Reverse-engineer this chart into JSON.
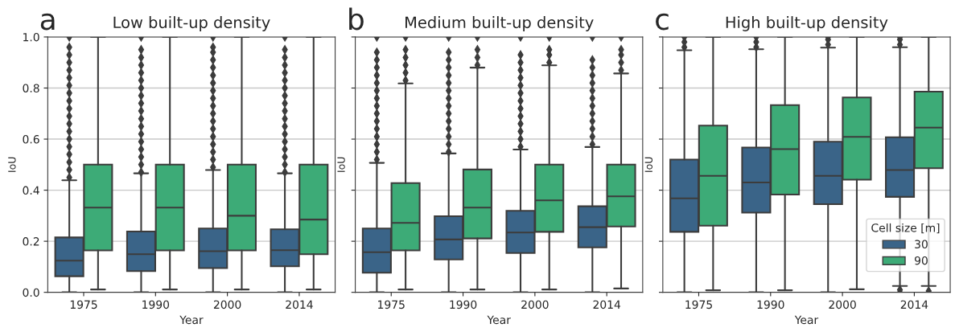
{
  "chart_data": [
    {
      "type": "box",
      "title": "Low built-up density",
      "annotations": [
        "a"
      ],
      "xlabel": "Year",
      "ylabel": "IoU",
      "categories": [
        "1975",
        "1990",
        "2000",
        "2014"
      ],
      "ylim": [
        0,
        1
      ],
      "yticks": [
        {
          "value": 0,
          "label": "0.0"
        },
        0.2,
        0.4,
        0.6,
        0.8,
        {
          "value": 1,
          "label": "1.0"
        }
      ],
      "grid": "y",
      "legend": false,
      "marker": "diamond",
      "series": [
        {
          "color": "#3a6488",
          "boxes": [
            {
              "low": 0.0,
              "q1": 0.063,
              "median": 0.124,
              "q3": 0.215,
              "high": 0.439,
              "outliers": [
                0.45,
                0.48,
                0.51,
                0.54,
                0.57,
                0.6,
                0.63,
                0.66,
                0.69,
                0.72,
                0.75,
                0.78,
                0.81,
                0.84,
                0.87,
                0.9,
                0.93,
                0.96,
                1.0
              ]
            },
            {
              "low": 0.0,
              "q1": 0.083,
              "median": 0.149,
              "q3": 0.238,
              "high": 0.466,
              "outliers": [
                0.47,
                0.5,
                0.53,
                0.56,
                0.59,
                0.62,
                0.65,
                0.68,
                0.71,
                0.74,
                0.77,
                0.8,
                0.83,
                0.86,
                0.89,
                0.92,
                0.95,
                1.0
              ]
            },
            {
              "low": 0.0,
              "q1": 0.095,
              "median": 0.161,
              "q3": 0.25,
              "high": 0.479,
              "outliers": [
                0.49,
                0.52,
                0.55,
                0.58,
                0.61,
                0.64,
                0.67,
                0.7,
                0.73,
                0.76,
                0.79,
                0.82,
                0.85,
                0.88,
                0.91,
                0.94,
                0.96,
                1.0
              ]
            },
            {
              "low": 0.0,
              "q1": 0.102,
              "median": 0.165,
              "q3": 0.247,
              "high": 0.466,
              "outliers": [
                0.47,
                0.5,
                0.53,
                0.56,
                0.59,
                0.62,
                0.65,
                0.68,
                0.71,
                0.74,
                0.77,
                0.8,
                0.83,
                0.86,
                0.89,
                0.92,
                0.95,
                1.0
              ]
            }
          ]
        },
        {
          "color": "#3dab77",
          "boxes": [
            {
              "low": 0.011,
              "q1": 0.164,
              "median": 0.332,
              "q3": 0.5,
              "high": 1.0
            },
            {
              "low": 0.011,
              "q1": 0.164,
              "median": 0.332,
              "q3": 0.5,
              "high": 1.0
            },
            {
              "low": 0.011,
              "q1": 0.164,
              "median": 0.3,
              "q3": 0.5,
              "high": 1.0
            },
            {
              "low": 0.011,
              "q1": 0.149,
              "median": 0.285,
              "q3": 0.5,
              "high": 1.0
            }
          ]
        }
      ]
    },
    {
      "type": "box",
      "title": "Medium built-up density",
      "annotations": [
        "b"
      ],
      "xlabel": "Year",
      "ylabel": "IoU",
      "categories": [
        "1975",
        "1990",
        "2000",
        "2014"
      ],
      "ylim": [
        0,
        1
      ],
      "yticks": [
        0.0,
        0.2,
        0.4,
        0.6,
        0.8,
        1.0
      ],
      "grid": "y",
      "legend": false,
      "tick_labels": "x",
      "marker": "diamond",
      "series": [
        {
          "color": "#3a6488",
          "boxes": [
            {
              "low": 0.0,
              "q1": 0.077,
              "median": 0.157,
              "q3": 0.25,
              "high": 0.507,
              "outliers": [
                0.52,
                0.55,
                0.58,
                0.61,
                0.64,
                0.67,
                0.7,
                0.73,
                0.76,
                0.79,
                0.82,
                0.85,
                0.88,
                0.91,
                0.94,
                1.0
              ]
            },
            {
              "low": 0.0,
              "q1": 0.129,
              "median": 0.207,
              "q3": 0.298,
              "high": 0.544,
              "outliers": [
                0.55,
                0.58,
                0.61,
                0.64,
                0.67,
                0.7,
                0.73,
                0.76,
                0.79,
                0.82,
                0.85,
                0.88,
                0.91,
                0.94,
                1.0
              ]
            },
            {
              "low": 0.0,
              "q1": 0.154,
              "median": 0.234,
              "q3": 0.319,
              "high": 0.559,
              "outliers": [
                0.57,
                0.6,
                0.63,
                0.66,
                0.69,
                0.72,
                0.75,
                0.78,
                0.81,
                0.84,
                0.87,
                0.9,
                0.93,
                1.0
              ]
            },
            {
              "low": 0.0,
              "q1": 0.176,
              "median": 0.255,
              "q3": 0.337,
              "high": 0.569,
              "outliers": [
                0.58,
                0.61,
                0.64,
                0.67,
                0.7,
                0.73,
                0.76,
                0.79,
                0.82,
                0.85,
                0.88,
                0.91,
                1.0
              ]
            }
          ]
        },
        {
          "color": "#3dab77",
          "boxes": [
            {
              "low": 0.011,
              "q1": 0.164,
              "median": 0.272,
              "q3": 0.428,
              "high": 0.818,
              "outliers": [
                0.83,
                0.86,
                0.89,
                0.92,
                0.95,
                1.0
              ]
            },
            {
              "low": 0.011,
              "q1": 0.211,
              "median": 0.332,
              "q3": 0.481,
              "high": 0.88,
              "outliers": [
                0.89,
                0.92,
                0.95,
                1.0
              ]
            },
            {
              "low": 0.011,
              "q1": 0.237,
              "median": 0.36,
              "q3": 0.5,
              "high": 0.889,
              "outliers": [
                0.9,
                0.93,
                0.95,
                1.0
              ]
            },
            {
              "low": 0.015,
              "q1": 0.258,
              "median": 0.376,
              "q3": 0.5,
              "high": 0.857,
              "outliers": [
                0.87,
                0.9,
                0.93,
                0.95,
                1.0
              ]
            }
          ]
        }
      ]
    },
    {
      "type": "box",
      "title": "High built-up density",
      "annotations": [
        "c"
      ],
      "xlabel": "Year",
      "ylabel": "IoU",
      "categories": [
        "1975",
        "1990",
        "2000",
        "2014"
      ],
      "ylim": [
        0,
        1
      ],
      "yticks": [
        0.0,
        0.2,
        0.4,
        0.6,
        0.8,
        1.0
      ],
      "grid": "y",
      "legend": "bottom right",
      "legend_title": "Cell size [m]",
      "tick_labels": "x",
      "marker": "diamond",
      "series": [
        {
          "name": "30",
          "color": "#3a6488",
          "boxes": [
            {
              "low": 0.0,
              "q1": 0.237,
              "median": 0.368,
              "q3": 0.52,
              "high": 0.948,
              "outliers": [
                0.96,
                0.98,
                1.0
              ]
            },
            {
              "low": 0.0,
              "q1": 0.312,
              "median": 0.43,
              "q3": 0.567,
              "high": 0.952,
              "outliers": [
                0.96,
                0.98,
                1.0
              ]
            },
            {
              "low": 0.0,
              "q1": 0.345,
              "median": 0.456,
              "q3": 0.59,
              "high": 0.958,
              "outliers": [
                0.97,
                0.99,
                1.0
              ]
            },
            {
              "low": 0.025,
              "q1": 0.374,
              "median": 0.479,
              "q3": 0.607,
              "high": 0.96,
              "outliers": [
                0.0,
                0.01,
                0.97,
                0.99,
                1.0
              ]
            }
          ]
        },
        {
          "name": "90",
          "color": "#3dab77",
          "boxes": [
            {
              "low": 0.008,
              "q1": 0.261,
              "median": 0.456,
              "q3": 0.653,
              "high": 1.0
            },
            {
              "low": 0.008,
              "q1": 0.383,
              "median": 0.561,
              "q3": 0.733,
              "high": 1.0
            },
            {
              "low": 0.012,
              "q1": 0.441,
              "median": 0.609,
              "q3": 0.763,
              "high": 1.0
            },
            {
              "low": 0.025,
              "q1": 0.486,
              "median": 0.645,
              "q3": 0.786,
              "high": 1.0,
              "outliers": [
                0.005
              ]
            }
          ]
        }
      ]
    }
  ]
}
